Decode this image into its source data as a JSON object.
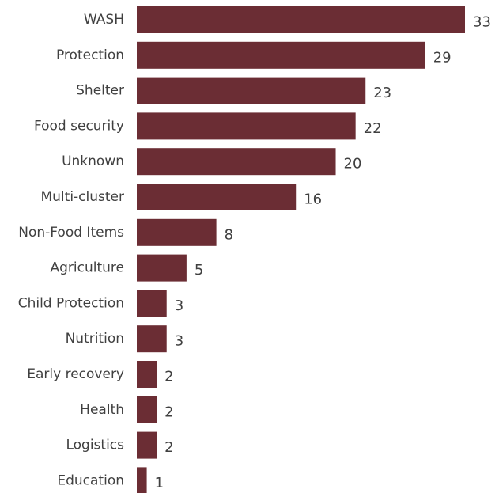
{
  "chart_data": {
    "type": "bar",
    "orientation": "horizontal",
    "categories": [
      "WASH",
      "Protection",
      "Shelter",
      "Food security",
      "Unknown",
      "Multi-cluster",
      "Non-Food Items",
      "Agriculture",
      "Child Protection",
      "Nutrition",
      "Early recovery",
      "Health",
      "Logistics",
      "Education"
    ],
    "values": [
      33,
      29,
      23,
      22,
      20,
      16,
      8,
      5,
      3,
      3,
      2,
      2,
      2,
      1
    ],
    "xlim": [
      0,
      33
    ],
    "grid": false,
    "data_labels": true,
    "bar_color": "#6b2d34",
    "text_color": "#404040"
  }
}
